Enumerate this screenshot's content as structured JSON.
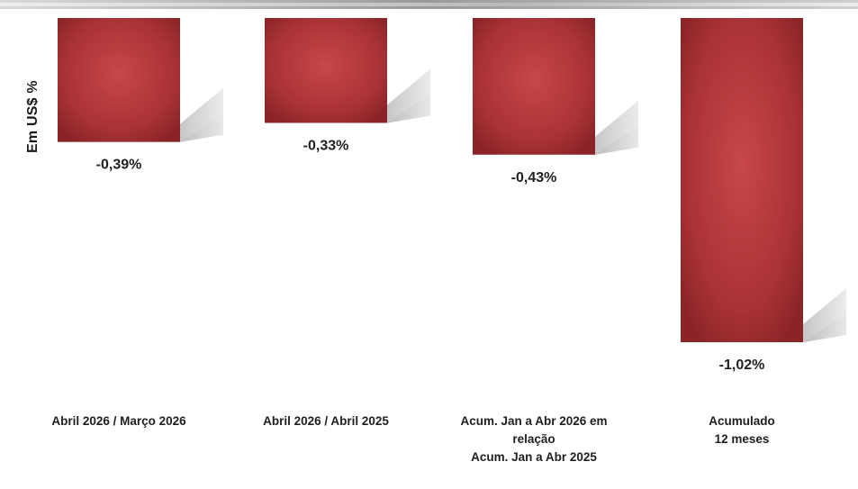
{
  "chart_data": {
    "type": "bar",
    "ylabel": "Em US$ %",
    "categories": [
      [
        "Abril 2026 / Março 2026"
      ],
      [
        "Abril 2026 / Abril 2025"
      ],
      [
        "Acum. Jan a Abr 2026 em",
        "relação",
        "Acum. Jan a Abr 2025"
      ],
      [
        "Acumulado",
        "12 meses"
      ]
    ],
    "values": [
      -0.39,
      -0.33,
      -0.43,
      -1.02
    ],
    "value_labels": [
      "-0,39%",
      "-0,33%",
      "-0,43%",
      "-1,02%"
    ],
    "ylim": [
      -1.02,
      0
    ],
    "grid": false,
    "legend": "none",
    "colors": {
      "bar": "#a83235",
      "bar_light": "#c8474a",
      "bar_dark": "#8a2427",
      "shadow": "#cfcfcf"
    }
  }
}
